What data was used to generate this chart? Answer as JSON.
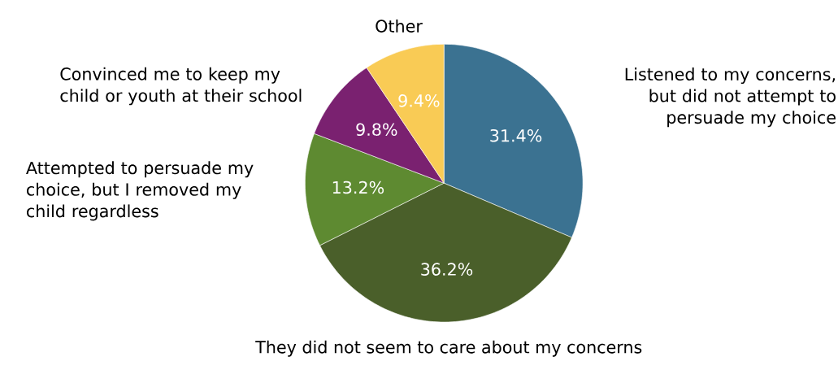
{
  "chart_data": {
    "type": "pie",
    "categories": [
      "Listened to my concerns, but did not attempt to persuade my choice",
      "They did not seem to care about my concerns",
      "Attempted to persuade my choice, but I removed my child regardless",
      "Convinced me to keep my child or youth at their school",
      "Other"
    ],
    "values": [
      31.4,
      36.2,
      13.2,
      9.8,
      9.4
    ],
    "value_labels": [
      "31.4%",
      "36.2%",
      "13.2%",
      "9.8%",
      "9.4%"
    ],
    "colors": [
      "#3b7291",
      "#4a5f2a",
      "#5e8a31",
      "#7a2170",
      "#f9cb55"
    ]
  }
}
